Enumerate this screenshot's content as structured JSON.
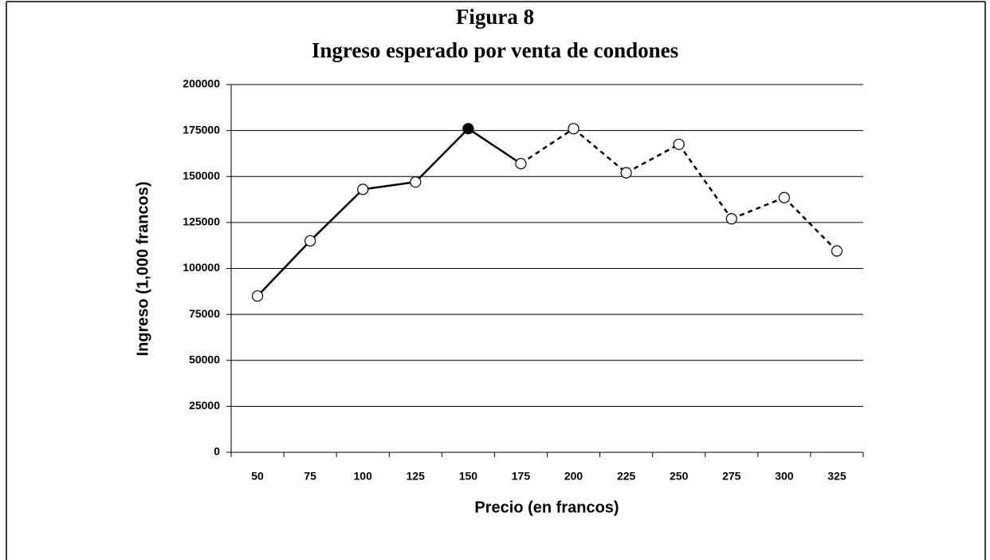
{
  "chart_data": {
    "type": "line",
    "title": "Figura 8",
    "subtitle": "Ingreso esperado por venta de condones",
    "x_label": "Precio (en francos)",
    "y_label": "Ingreso (1,000 francos)",
    "categories": [
      "50",
      "75",
      "100",
      "125",
      "150",
      "175",
      "200",
      "225",
      "250",
      "275",
      "300",
      "325"
    ],
    "values": [
      85000,
      115000,
      143000,
      147000,
      176000,
      157000,
      176000,
      152000,
      167500,
      127000,
      138500,
      109500
    ],
    "color": "#000000",
    "segment_styles": [
      "solid",
      "solid",
      "solid",
      "solid",
      "solid",
      "dashed",
      "dashed",
      "dashed",
      "dashed",
      "dashed",
      "dashed"
    ],
    "marker_fills": [
      "#ffffff",
      "#ffffff",
      "#ffffff",
      "#ffffff",
      "#000000",
      "#ffffff",
      "#ffffff",
      "#ffffff",
      "#ffffff",
      "#ffffff",
      "#ffffff",
      "#ffffff"
    ],
    "ylim": [
      0,
      200000
    ],
    "yticks": [
      0,
      25000,
      50000,
      75000,
      100000,
      125000,
      150000,
      175000,
      200000
    ],
    "grid": true
  }
}
